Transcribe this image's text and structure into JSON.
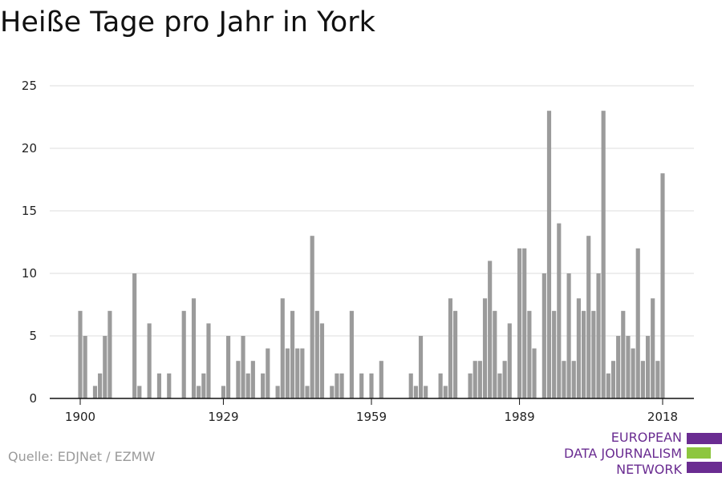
{
  "title": "Heiße Tage pro Jahr in York",
  "source": "Quelle: EDJNet / EZMW",
  "logo": {
    "lines": [
      "EUROPEAN",
      "DATA JOURNALISM",
      "NETWORK"
    ],
    "colors": {
      "purple": "#6a2c91",
      "green": "#8dc63f"
    }
  },
  "chart_data": {
    "type": "bar",
    "x": [
      1900,
      1901,
      1902,
      1903,
      1904,
      1905,
      1906,
      1907,
      1908,
      1909,
      1910,
      1911,
      1912,
      1913,
      1914,
      1915,
      1916,
      1917,
      1918,
      1919,
      1920,
      1921,
      1922,
      1923,
      1924,
      1925,
      1926,
      1927,
      1928,
      1929,
      1930,
      1931,
      1932,
      1933,
      1934,
      1935,
      1936,
      1937,
      1938,
      1939,
      1940,
      1941,
      1942,
      1943,
      1944,
      1945,
      1946,
      1947,
      1948,
      1949,
      1950,
      1951,
      1952,
      1953,
      1954,
      1955,
      1956,
      1957,
      1958,
      1959,
      1960,
      1961,
      1962,
      1963,
      1964,
      1965,
      1966,
      1967,
      1968,
      1969,
      1970,
      1971,
      1972,
      1973,
      1974,
      1975,
      1976,
      1977,
      1978,
      1979,
      1980,
      1981,
      1982,
      1983,
      1984,
      1985,
      1986,
      1987,
      1988,
      1989,
      1990,
      1991,
      1992,
      1993,
      1994,
      1995,
      1996,
      1997,
      1998,
      1999,
      2000,
      2001,
      2002,
      2003,
      2004,
      2005,
      2006,
      2007,
      2008,
      2009,
      2010,
      2011,
      2012,
      2013,
      2014,
      2015,
      2016,
      2017,
      2018
    ],
    "values": [
      7,
      5,
      0,
      1,
      2,
      5,
      7,
      0,
      0,
      0,
      0,
      10,
      1,
      0,
      6,
      0,
      2,
      0,
      2,
      0,
      0,
      7,
      0,
      8,
      1,
      2,
      6,
      0,
      0,
      1,
      5,
      0,
      3,
      5,
      2,
      3,
      0,
      2,
      4,
      0,
      1,
      8,
      4,
      7,
      4,
      4,
      1,
      13,
      7,
      6,
      0,
      1,
      2,
      2,
      0,
      7,
      0,
      2,
      0,
      2,
      0,
      3,
      0,
      0,
      0,
      0,
      0,
      2,
      1,
      5,
      1,
      0,
      0,
      2,
      1,
      8,
      7,
      0,
      0,
      2,
      3,
      3,
      8,
      11,
      7,
      2,
      3,
      6,
      0,
      12,
      12,
      7,
      4,
      0,
      10,
      23,
      7,
      14,
      3,
      10,
      3,
      8,
      7,
      13,
      7,
      10,
      23,
      2,
      3,
      5,
      7,
      5,
      4,
      12,
      3,
      5,
      8,
      3,
      18
    ],
    "xticks": [
      "1900",
      "1929",
      "1959",
      "1989",
      "2018"
    ],
    "yticks": [
      "0",
      "5",
      "10",
      "15",
      "20",
      "25"
    ],
    "ylim": [
      0,
      25
    ],
    "xlim": [
      1899.5,
      2018.5
    ],
    "grid": "horizontal",
    "colors": {
      "bar": "#9b9b9b",
      "grid": "#dddddd",
      "axis": "#111111"
    }
  }
}
